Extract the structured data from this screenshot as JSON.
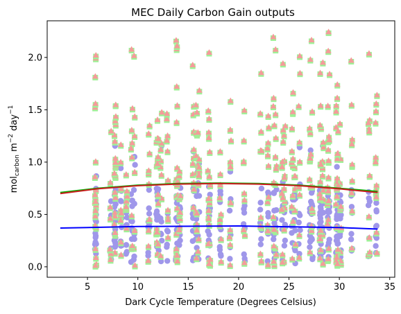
{
  "chart_data": {
    "type": "scatter",
    "title": "MEC Daily Carbon Gain outputs",
    "xlabel": "Dark Cycle Temperature (Degrees Celsius)",
    "ylabel_main": "mol",
    "ylabel_sub": "carbon",
    "ylabel_rest": " m",
    "ylabel_sup1": "−2",
    "ylabel_mid": " day",
    "ylabel_sup2": "−1",
    "xlim": [
      1,
      35.5
    ],
    "ylim": [
      -0.1,
      2.35
    ],
    "x_ticks": [
      5,
      10,
      15,
      20,
      25,
      30,
      35
    ],
    "x_tick_labels": [
      "5",
      "10",
      "15",
      "20",
      "25",
      "30",
      "35"
    ],
    "y_ticks": [
      0.0,
      0.5,
      1.0,
      1.5,
      2.0
    ],
    "y_tick_labels": [
      "0.0",
      "0.5",
      "1.0",
      "1.5",
      "2.0"
    ],
    "grid": false,
    "scatter_series": [
      {
        "marker": "circle",
        "color": "#9f97ea"
      },
      {
        "marker": "square",
        "color": "#9ff097"
      },
      {
        "marker": "triangle",
        "color": "#f49b9a"
      }
    ],
    "trend_lines": [
      {
        "color": "#0000ff",
        "x": [
          2.3,
          10,
          20,
          30,
          33.8
        ],
        "y": [
          0.37,
          0.385,
          0.39,
          0.375,
          0.36
        ]
      },
      {
        "color": "#00b000",
        "x": [
          2.3,
          6,
          10,
          14,
          18,
          22,
          26,
          30,
          33.8
        ],
        "y": [
          0.71,
          0.75,
          0.78,
          0.795,
          0.8,
          0.795,
          0.78,
          0.75,
          0.72
        ]
      },
      {
        "color": "#c81e1e",
        "x": [
          2.3,
          6,
          10,
          14,
          18,
          22,
          26,
          30,
          33.8
        ],
        "y": [
          0.7,
          0.745,
          0.775,
          0.79,
          0.795,
          0.79,
          0.775,
          0.745,
          0.71
        ]
      }
    ]
  }
}
